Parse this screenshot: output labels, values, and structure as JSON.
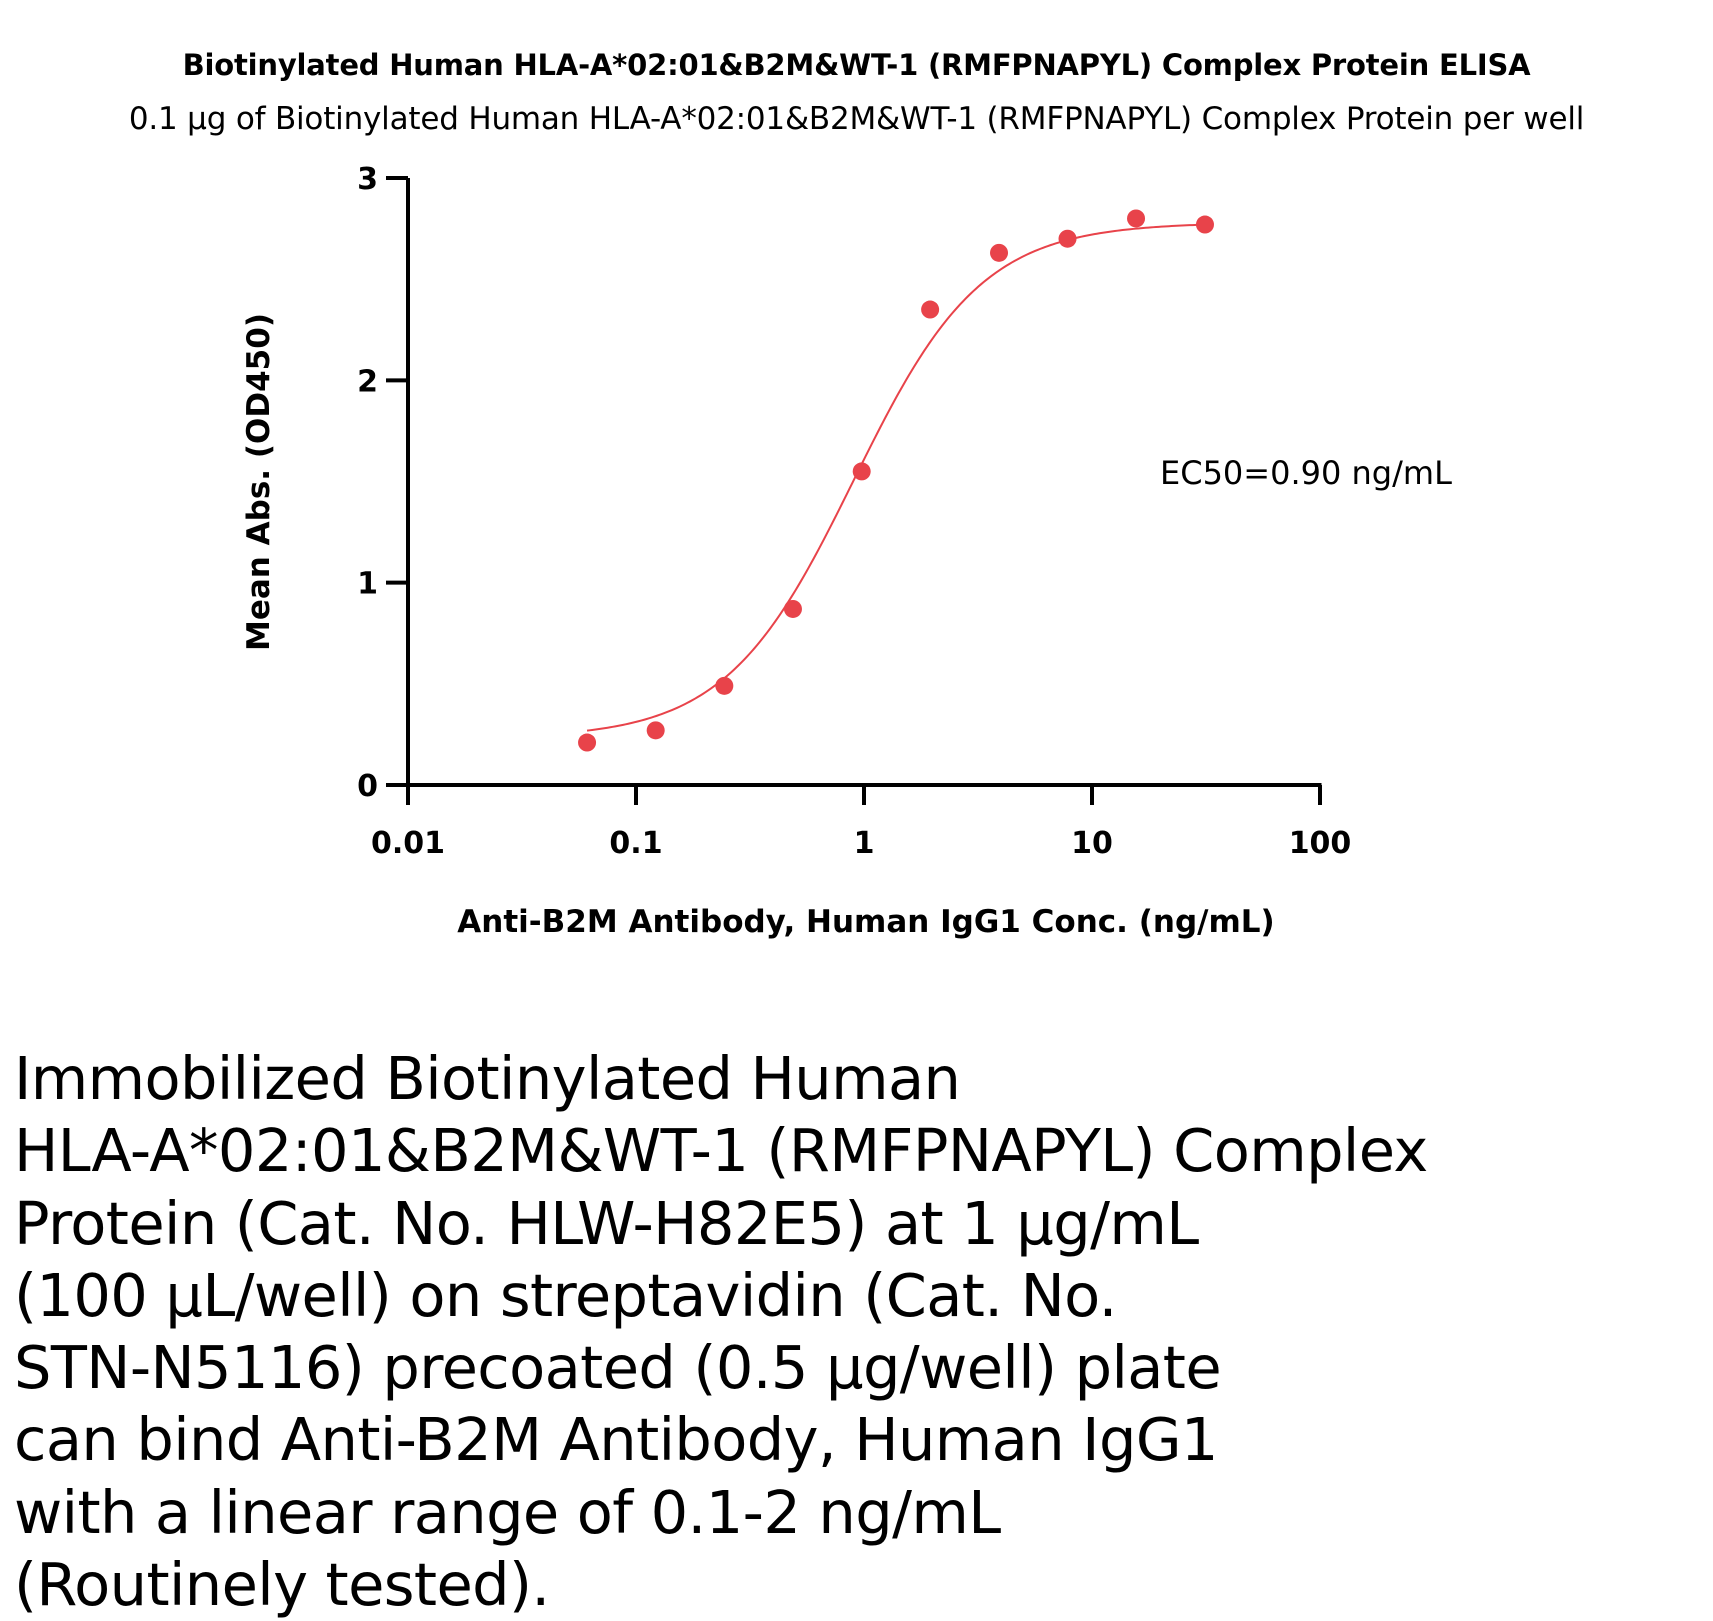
{
  "chart_data": {
    "type": "scatter",
    "title": "Biotinylated Human HLA-A*02:01&B2M&WT-1 (RMFPNAPYL) Complex Protein ELISA",
    "subtitle": "0.1 µg of Biotinylated Human HLA-A*02:01&B2M&WT-1 (RMFPNAPYL) Complex Protein per well",
    "xlabel": "Anti-B2M Antibody, Human IgG1 Conc. (ng/mL)",
    "ylabel": "Mean Abs. (OD450)",
    "xscale": "log",
    "xlim": [
      0.01,
      100
    ],
    "ylim": [
      0,
      3
    ],
    "xticks": [
      "0.01",
      "0.1",
      "1",
      "10",
      "100"
    ],
    "yticks": [
      "0",
      "1",
      "2",
      "3"
    ],
    "grid": false,
    "color": "#e8434a",
    "series": [
      {
        "x": [
          0.061,
          0.122,
          0.244,
          0.488,
          0.977,
          1.95,
          3.91,
          7.81,
          15.6,
          31.3
        ],
        "y": [
          0.21,
          0.27,
          0.49,
          0.87,
          1.55,
          2.35,
          2.63,
          2.7,
          2.8,
          2.77
        ]
      }
    ],
    "fit_curve": {
      "model": "4PL",
      "bottom": 0.23,
      "top": 2.78,
      "ec50": 0.9,
      "hill": 1.55
    },
    "annotations": [
      "EC50=0.90 ng/mL"
    ]
  },
  "caption": "Immobilized Biotinylated Human\nHLA-A*02:01&B2M&WT-1 (RMFPNAPYL) Complex\nProtein (Cat. No. HLW-H82E5) at 1 µg/mL\n(100 µL/well) on streptavidin (Cat. No.\nSTN-N5116) precoated (0.5 µg/well) plate\ncan bind Anti-B2M Antibody, Human IgG1\nwith a linear range of 0.1-2 ng/mL\n(Routinely tested)."
}
